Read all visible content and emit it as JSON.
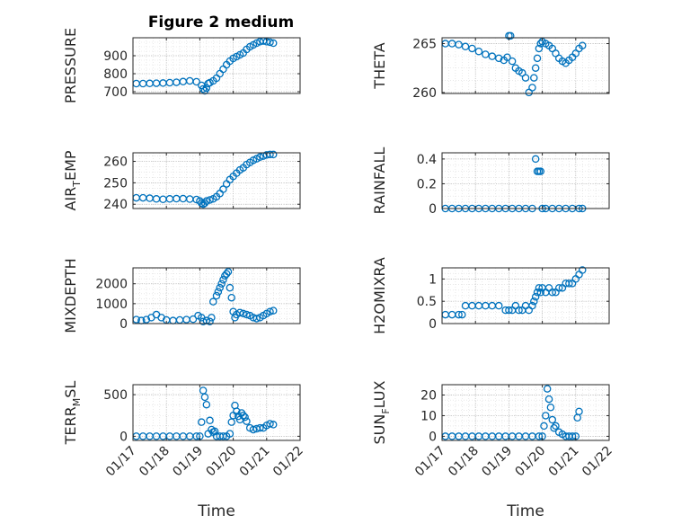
{
  "figure": {
    "title": "Figure 2 medium"
  },
  "colors": {
    "marker": "#0072BD",
    "axis": "#262626",
    "grid": "#b0b0b0",
    "background": "#ffffff"
  },
  "chart_data": [
    {
      "id": "pressure",
      "type": "scatter",
      "title": "Figure 2 medium",
      "xlabel": "",
      "ylabel_main": "PRESSURE",
      "ylabel_sub": "",
      "ylabel_tail": "",
      "xlim": [
        17,
        22
      ],
      "ylim": [
        690,
        1000
      ],
      "yticks": [
        700,
        800,
        900
      ],
      "yticklabels": [
        "700",
        "800",
        "900"
      ],
      "xticks": [
        17,
        18,
        19,
        20,
        21,
        22
      ],
      "xticklabels": [],
      "grid": true,
      "x": [
        17.1,
        17.3,
        17.5,
        17.7,
        17.9,
        18.1,
        18.3,
        18.5,
        18.7,
        18.9,
        19.05,
        19.1,
        19.15,
        19.2,
        19.25,
        19.3,
        19.4,
        19.5,
        19.6,
        19.7,
        19.8,
        19.9,
        20.0,
        20.1,
        20.2,
        20.3,
        20.4,
        20.5,
        20.6,
        20.7,
        20.8,
        20.9,
        21.0,
        21.1,
        21.2
      ],
      "y": [
        745,
        745,
        746,
        747,
        748,
        750,
        752,
        756,
        760,
        755,
        735,
        715,
        705,
        720,
        745,
        750,
        760,
        775,
        800,
        825,
        850,
        870,
        885,
        895,
        905,
        915,
        935,
        950,
        960,
        970,
        978,
        982,
        978,
        975,
        970
      ]
    },
    {
      "id": "theta",
      "type": "scatter",
      "title": "",
      "xlabel": "",
      "ylabel_main": "THETA",
      "ylabel_sub": "",
      "ylabel_tail": "",
      "xlim": [
        17,
        22
      ],
      "ylim": [
        259.9,
        265.6
      ],
      "yticks": [
        260,
        265
      ],
      "yticklabels": [
        "260",
        "265"
      ],
      "xticks": [
        17,
        18,
        19,
        20,
        21,
        22
      ],
      "xticklabels": [],
      "grid": true,
      "x": [
        17.1,
        17.3,
        17.5,
        17.7,
        17.9,
        18.1,
        18.3,
        18.5,
        18.7,
        18.85,
        18.95,
        19.0,
        19.05,
        19.1,
        19.2,
        19.3,
        19.4,
        19.5,
        19.6,
        19.7,
        19.75,
        19.8,
        19.85,
        19.9,
        19.95,
        20.0,
        20.1,
        20.2,
        20.3,
        20.4,
        20.5,
        20.6,
        20.7,
        20.8,
        20.9,
        21.0,
        21.1,
        21.2
      ],
      "y": [
        265,
        265,
        264.9,
        264.7,
        264.5,
        264.2,
        263.9,
        263.7,
        263.5,
        263.3,
        263.6,
        265.8,
        265.8,
        263.2,
        262.5,
        262.2,
        262.0,
        261.5,
        260.0,
        260.5,
        261.5,
        262.5,
        263.5,
        264.5,
        265.0,
        265.2,
        265.0,
        264.8,
        264.5,
        264.0,
        263.5,
        263.2,
        263.0,
        263.3,
        263.6,
        264.0,
        264.5,
        264.8
      ]
    },
    {
      "id": "air_temp",
      "type": "scatter",
      "title": "",
      "xlabel": "",
      "ylabel_main": "AIR",
      "ylabel_sub": "T",
      "ylabel_tail": "EMP",
      "xlim": [
        17,
        22
      ],
      "ylim": [
        238,
        264
      ],
      "yticks": [
        240,
        250,
        260
      ],
      "yticklabels": [
        "240",
        "250",
        "260"
      ],
      "xticks": [
        17,
        18,
        19,
        20,
        21,
        22
      ],
      "xticklabels": [],
      "grid": true,
      "x": [
        17.1,
        17.3,
        17.5,
        17.7,
        17.9,
        18.1,
        18.3,
        18.5,
        18.7,
        18.9,
        19.0,
        19.05,
        19.1,
        19.15,
        19.2,
        19.3,
        19.4,
        19.5,
        19.6,
        19.7,
        19.8,
        19.9,
        20.0,
        20.1,
        20.2,
        20.3,
        20.4,
        20.5,
        20.6,
        20.7,
        20.8,
        20.9,
        21.0,
        21.1,
        21.2
      ],
      "y": [
        243,
        243,
        242.8,
        242.5,
        242.3,
        242.5,
        242.6,
        242.6,
        242.4,
        242.2,
        241.5,
        240.5,
        240.0,
        240.5,
        241.5,
        242.0,
        242.5,
        243.5,
        245.0,
        247.0,
        249.5,
        251.5,
        253.0,
        254.5,
        256.0,
        257.0,
        258.5,
        259.5,
        260.5,
        261.2,
        262.0,
        262.5,
        263.0,
        263.2,
        263.2
      ]
    },
    {
      "id": "rainfall",
      "type": "scatter",
      "title": "",
      "xlabel": "",
      "ylabel_main": "RAINFALL",
      "ylabel_sub": "",
      "ylabel_tail": "",
      "xlim": [
        17,
        22
      ],
      "ylim": [
        0,
        0.45
      ],
      "yticks": [
        0,
        0.2,
        0.4
      ],
      "yticklabels": [
        "0",
        "0.2",
        "0.4"
      ],
      "xticks": [
        17,
        18,
        19,
        20,
        21,
        22
      ],
      "xticklabels": [],
      "grid": true,
      "x": [
        17.1,
        17.3,
        17.5,
        17.7,
        17.9,
        18.1,
        18.3,
        18.5,
        18.7,
        18.9,
        19.1,
        19.3,
        19.5,
        19.7,
        19.8,
        19.85,
        19.9,
        19.95,
        20.0,
        20.1,
        20.3,
        20.5,
        20.7,
        20.9,
        21.1,
        21.2
      ],
      "y": [
        0,
        0,
        0,
        0,
        0,
        0,
        0,
        0,
        0,
        0,
        0,
        0,
        0,
        0,
        0.4,
        0.3,
        0.3,
        0.3,
        0,
        0,
        0,
        0,
        0,
        0,
        0,
        0
      ]
    },
    {
      "id": "mixdepth",
      "type": "scatter",
      "title": "",
      "xlabel": "",
      "ylabel_main": "MIXDEPTH",
      "ylabel_sub": "",
      "ylabel_tail": "",
      "xlim": [
        17,
        22
      ],
      "ylim": [
        0,
        2800
      ],
      "yticks": [
        0,
        1000,
        2000
      ],
      "yticklabels": [
        "0",
        "1000",
        "2000"
      ],
      "xticks": [
        17,
        18,
        19,
        20,
        21,
        22
      ],
      "xticklabels": [],
      "grid": true,
      "x": [
        17.1,
        17.25,
        17.4,
        17.55,
        17.7,
        17.85,
        18.0,
        18.2,
        18.4,
        18.6,
        18.8,
        18.95,
        19.05,
        19.1,
        19.2,
        19.3,
        19.35,
        19.4,
        19.5,
        19.55,
        19.6,
        19.65,
        19.7,
        19.75,
        19.8,
        19.85,
        19.9,
        19.95,
        20.0,
        20.05,
        20.1,
        20.2,
        20.3,
        20.4,
        20.5,
        20.6,
        20.7,
        20.8,
        20.9,
        21.0,
        21.1,
        21.2
      ],
      "y": [
        200,
        150,
        200,
        300,
        450,
        300,
        180,
        150,
        180,
        200,
        220,
        400,
        300,
        100,
        150,
        100,
        300,
        1100,
        1400,
        1600,
        1800,
        2000,
        2200,
        2400,
        2500,
        2600,
        1800,
        1300,
        600,
        300,
        450,
        550,
        500,
        450,
        400,
        300,
        250,
        300,
        400,
        500,
        600,
        650
      ]
    },
    {
      "id": "h2omixra",
      "type": "scatter",
      "title": "",
      "xlabel": "",
      "ylabel_main": "H2OMIXRA",
      "ylabel_sub": "",
      "ylabel_tail": "",
      "xlim": [
        17,
        22
      ],
      "ylim": [
        0,
        1.25
      ],
      "yticks": [
        0,
        0.5,
        1
      ],
      "yticklabels": [
        "0",
        "0.5",
        "1"
      ],
      "xticks": [
        17,
        18,
        19,
        20,
        21,
        22
      ],
      "xticklabels": [],
      "grid": true,
      "x": [
        17.1,
        17.3,
        17.5,
        17.6,
        17.7,
        17.9,
        18.1,
        18.3,
        18.5,
        18.7,
        18.9,
        19.0,
        19.1,
        19.2,
        19.3,
        19.4,
        19.5,
        19.6,
        19.7,
        19.75,
        19.8,
        19.85,
        19.9,
        19.95,
        20.0,
        20.1,
        20.2,
        20.3,
        20.4,
        20.5,
        20.6,
        20.7,
        20.8,
        20.9,
        21.0,
        21.1,
        21.2
      ],
      "y": [
        0.2,
        0.2,
        0.2,
        0.2,
        0.4,
        0.4,
        0.4,
        0.4,
        0.4,
        0.4,
        0.3,
        0.3,
        0.3,
        0.4,
        0.3,
        0.3,
        0.4,
        0.3,
        0.4,
        0.5,
        0.6,
        0.7,
        0.8,
        0.7,
        0.8,
        0.7,
        0.8,
        0.7,
        0.7,
        0.8,
        0.8,
        0.9,
        0.9,
        0.9,
        1.0,
        1.1,
        1.2
      ]
    },
    {
      "id": "terr_msl",
      "type": "scatter",
      "title": "",
      "xlabel": "Time",
      "ylabel_main": "TERR",
      "ylabel_sub": "M",
      "ylabel_tail": "SL",
      "xlim": [
        17,
        22
      ],
      "ylim": [
        -50,
        620
      ],
      "yticks": [
        0,
        500
      ],
      "yticklabels": [
        "0",
        "500"
      ],
      "xticks": [
        17,
        18,
        19,
        20,
        21,
        22
      ],
      "xticklabels": [
        "01/17",
        "01/18",
        "01/19",
        "01/20",
        "01/21",
        "01/22"
      ],
      "grid": true,
      "x": [
        17.1,
        17.3,
        17.5,
        17.7,
        17.9,
        18.1,
        18.3,
        18.5,
        18.7,
        18.9,
        19.0,
        19.05,
        19.1,
        19.15,
        19.2,
        19.25,
        19.3,
        19.35,
        19.4,
        19.45,
        19.5,
        19.6,
        19.7,
        19.8,
        19.9,
        19.95,
        20.0,
        20.05,
        20.1,
        20.15,
        20.2,
        20.25,
        20.3,
        20.35,
        20.4,
        20.5,
        20.6,
        20.7,
        20.8,
        20.9,
        21.0,
        21.1,
        21.2
      ],
      "y": [
        0,
        0,
        0,
        0,
        0,
        0,
        0,
        0,
        0,
        0,
        0,
        170,
        550,
        470,
        380,
        30,
        190,
        80,
        50,
        60,
        0,
        0,
        0,
        0,
        30,
        170,
        250,
        370,
        300,
        240,
        200,
        280,
        250,
        230,
        180,
        100,
        80,
        90,
        100,
        100,
        130,
        150,
        140
      ]
    },
    {
      "id": "sun_flux",
      "type": "scatter",
      "title": "",
      "xlabel": "Time",
      "ylabel_main": "SUN",
      "ylabel_sub": "F",
      "ylabel_tail": "LUX",
      "xlim": [
        17,
        22
      ],
      "ylim": [
        -2,
        25
      ],
      "yticks": [
        0,
        10,
        20
      ],
      "yticklabels": [
        "0",
        "10",
        "20"
      ],
      "xticks": [
        17,
        18,
        19,
        20,
        21,
        22
      ],
      "xticklabels": [
        "01/17",
        "01/18",
        "01/19",
        "01/20",
        "01/21",
        "01/22"
      ],
      "grid": true,
      "x": [
        17.1,
        17.3,
        17.5,
        17.7,
        17.9,
        18.1,
        18.3,
        18.5,
        18.7,
        18.9,
        19.1,
        19.3,
        19.5,
        19.7,
        19.9,
        20.0,
        20.05,
        20.1,
        20.15,
        20.2,
        20.25,
        20.3,
        20.35,
        20.4,
        20.5,
        20.6,
        20.7,
        20.8,
        20.9,
        21.0,
        21.05,
        21.1
      ],
      "y": [
        0,
        0,
        0,
        0,
        0,
        0,
        0,
        0,
        0,
        0,
        0,
        0,
        0,
        0,
        0,
        0,
        5,
        10,
        23,
        18,
        14,
        8,
        4,
        5,
        2,
        1,
        0,
        0,
        0,
        0,
        9,
        12
      ]
    }
  ]
}
